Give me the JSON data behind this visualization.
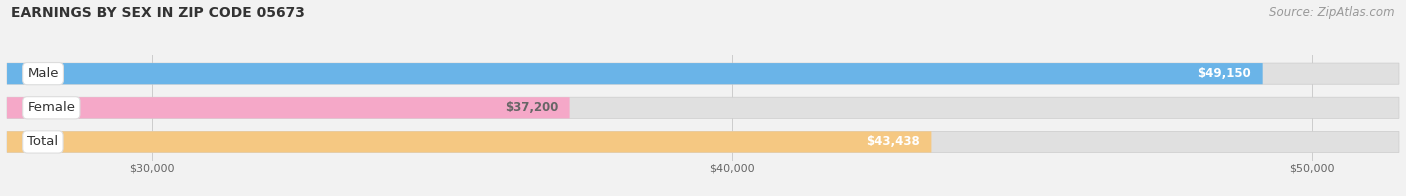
{
  "title": "EARNINGS BY SEX IN ZIP CODE 05673",
  "source": "Source: ZipAtlas.com",
  "categories": [
    "Male",
    "Female",
    "Total"
  ],
  "values": [
    49150,
    37200,
    43438
  ],
  "bar_colors": [
    "#6ab4e8",
    "#f5a8c8",
    "#f5c882"
  ],
  "bar_bg_color": "#e0e0e0",
  "label_bg_colors": [
    "#6ab4e8",
    "#f5a8c8",
    "#f5c882"
  ],
  "value_label_colors": [
    "#ffffff",
    "#666666",
    "#ffffff"
  ],
  "value_labels": [
    "$49,150",
    "$37,200",
    "$43,438"
  ],
  "xmin": 27500,
  "xmax": 51500,
  "xticks": [
    30000,
    40000,
    50000
  ],
  "xtick_labels": [
    "$30,000",
    "$40,000",
    "$50,000"
  ],
  "bar_height": 0.62,
  "background_color": "#f2f2f2",
  "title_fontsize": 10,
  "source_fontsize": 8.5,
  "category_fontsize": 9.5,
  "value_fontsize": 8.5
}
